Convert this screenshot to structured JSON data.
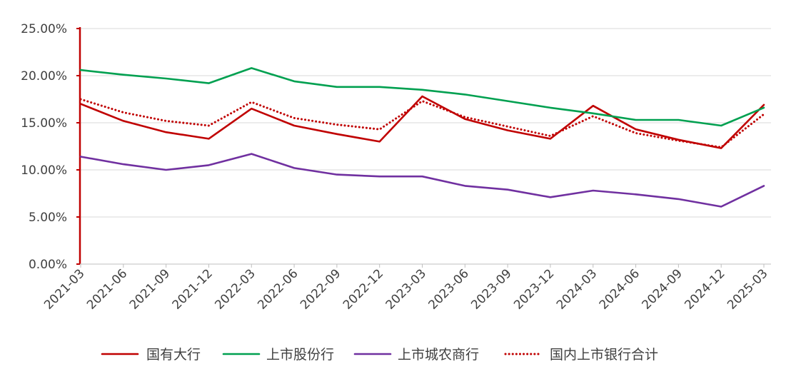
{
  "chart_data": {
    "type": "line",
    "title": "",
    "xlabel": "",
    "ylabel": "",
    "ylim": [
      0,
      25
    ],
    "y_tick_values": [
      0,
      5,
      10,
      15,
      20,
      25
    ],
    "y_tick_labels": [
      "0.00%",
      "5.00%",
      "10.00%",
      "15.00%",
      "20.00%",
      "25.00%"
    ],
    "grid": true,
    "legend_position": "bottom",
    "categories": [
      "2021-03",
      "2021-06",
      "2021-09",
      "2021-12",
      "2022-03",
      "2022-06",
      "2022-09",
      "2022-12",
      "2023-03",
      "2023-06",
      "2023-09",
      "2023-12",
      "2024-03",
      "2024-06",
      "2024-09",
      "2024-12",
      "2025-03"
    ],
    "series": [
      {
        "name": "国有大行",
        "color": "#c00000",
        "style": "solid",
        "values": [
          17.0,
          15.2,
          14.0,
          13.3,
          16.5,
          14.7,
          13.8,
          13.0,
          17.8,
          15.4,
          14.2,
          13.3,
          16.8,
          14.3,
          13.2,
          12.3,
          16.9
        ]
      },
      {
        "name": "上市股份行",
        "color": "#00a050",
        "style": "solid",
        "values": [
          20.6,
          20.1,
          19.7,
          19.2,
          20.8,
          19.4,
          18.8,
          18.8,
          18.5,
          18.0,
          17.3,
          16.6,
          16.0,
          15.3,
          15.3,
          14.7,
          16.6
        ]
      },
      {
        "name": "上市城农商行",
        "color": "#7030a0",
        "style": "solid",
        "values": [
          11.4,
          10.6,
          10.0,
          10.5,
          11.7,
          10.2,
          9.5,
          9.3,
          9.3,
          8.3,
          7.9,
          7.1,
          7.8,
          7.4,
          6.9,
          6.1,
          8.3
        ]
      },
      {
        "name": "国内上市银行合计",
        "color": "#c00000",
        "style": "dotted",
        "values": [
          17.5,
          16.1,
          15.2,
          14.7,
          17.2,
          15.5,
          14.8,
          14.3,
          17.3,
          15.6,
          14.6,
          13.6,
          15.7,
          13.9,
          13.1,
          12.4,
          15.9
        ]
      }
    ]
  }
}
